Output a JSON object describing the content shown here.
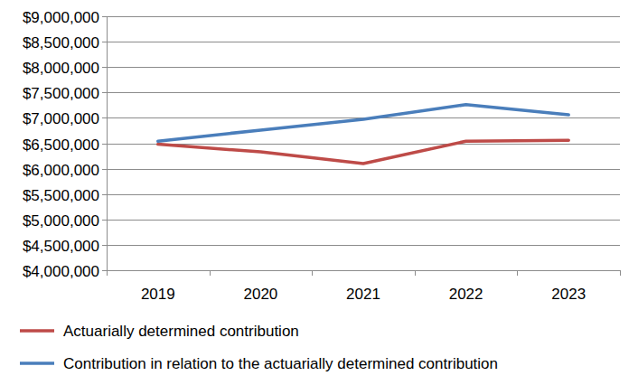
{
  "chart_data": {
    "type": "line",
    "categories": [
      "2019",
      "2020",
      "2021",
      "2022",
      "2023"
    ],
    "series": [
      {
        "name": "Actuarially determined contribution",
        "color": "#be4b48",
        "values": [
          6480000,
          6330000,
          6100000,
          6540000,
          6560000
        ]
      },
      {
        "name": "Contribution in relation to the actuarially determined contribution",
        "color": "#4a7ebb",
        "values": [
          6540000,
          6760000,
          6970000,
          7260000,
          7060000
        ]
      }
    ],
    "ylim": [
      4000000,
      9000000
    ],
    "yticks": [
      {
        "value": 4000000,
        "label": "$4,000,000"
      },
      {
        "value": 4500000,
        "label": "$4,500,000"
      },
      {
        "value": 5000000,
        "label": "$5,000,000"
      },
      {
        "value": 5500000,
        "label": "$5,500,000"
      },
      {
        "value": 6000000,
        "label": "$6,000,000"
      },
      {
        "value": 6500000,
        "label": "$6,500,000"
      },
      {
        "value": 7000000,
        "label": "$7,000,000"
      },
      {
        "value": 7500000,
        "label": "$7,500,000"
      },
      {
        "value": 8000000,
        "label": "$8,000,000"
      },
      {
        "value": 8500000,
        "label": "$8,500,000"
      },
      {
        "value": 9000000,
        "label": "$9,000,000"
      }
    ],
    "grid": true,
    "legend": "bottom"
  }
}
